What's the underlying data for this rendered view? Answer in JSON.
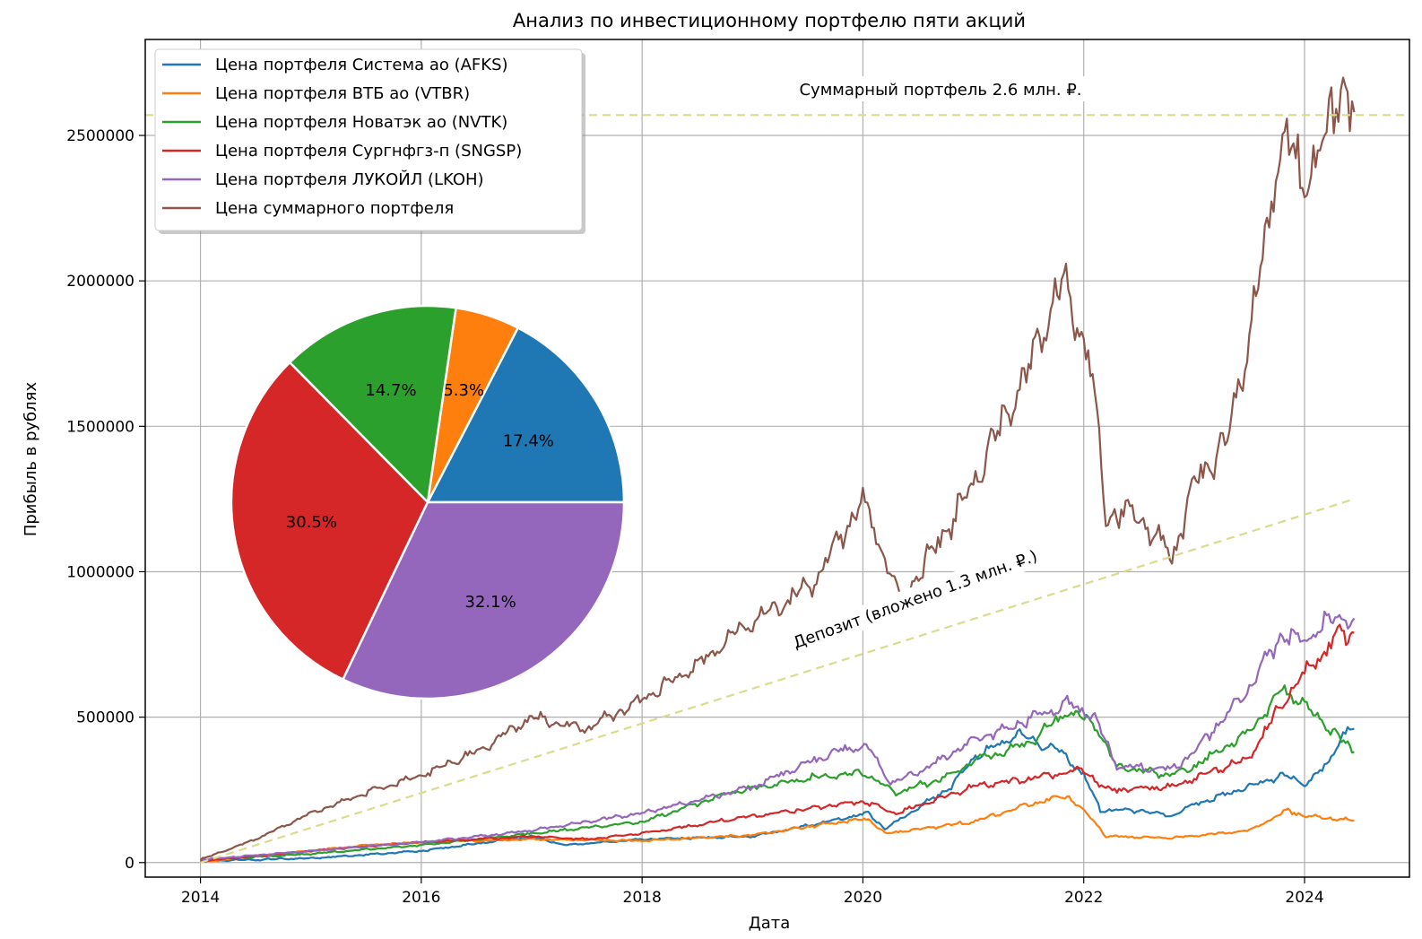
{
  "chart_data": {
    "type": "line",
    "title": "Анализ по инвестиционному портфелю пяти акций",
    "xlabel": "Дата",
    "ylabel": "Прибыль в рублях",
    "x_ticks": [
      "2014",
      "2016",
      "2018",
      "2020",
      "2022",
      "2024"
    ],
    "y_ticks": [
      "0",
      "500000",
      "1000000",
      "1500000",
      "2000000",
      "2500000"
    ],
    "xlim": [
      2013.5,
      2024.95
    ],
    "ylim": [
      -50000,
      2830000
    ],
    "grid": true,
    "legend_position": "top-left",
    "series": [
      {
        "name": "Цена портфеля Система ао (AFKS)",
        "color": "#1f77b4",
        "points": [
          [
            2014.0,
            5000
          ],
          [
            2015.0,
            15000
          ],
          [
            2016.0,
            40000
          ],
          [
            2017.0,
            90000
          ],
          [
            2017.3,
            60000
          ],
          [
            2018.0,
            80000
          ],
          [
            2019.0,
            90000
          ],
          [
            2019.8,
            150000
          ],
          [
            2020.05,
            170000
          ],
          [
            2020.2,
            115000
          ],
          [
            2020.8,
            260000
          ],
          [
            2021.0,
            360000
          ],
          [
            2021.4,
            440000
          ],
          [
            2021.8,
            380000
          ],
          [
            2022.0,
            300000
          ],
          [
            2022.15,
            180000
          ],
          [
            2022.5,
            180000
          ],
          [
            2022.8,
            160000
          ],
          [
            2023.0,
            200000
          ],
          [
            2023.5,
            260000
          ],
          [
            2023.8,
            300000
          ],
          [
            2024.0,
            270000
          ],
          [
            2024.2,
            330000
          ],
          [
            2024.35,
            450000
          ],
          [
            2024.45,
            460000
          ]
        ]
      },
      {
        "name": "Цена портфеля ВТБ ао (VTBR)",
        "color": "#ff7f0e",
        "points": [
          [
            2014.0,
            3000
          ],
          [
            2015.0,
            40000
          ],
          [
            2015.5,
            60000
          ],
          [
            2016.0,
            70000
          ],
          [
            2017.0,
            80000
          ],
          [
            2018.0,
            75000
          ],
          [
            2019.0,
            95000
          ],
          [
            2019.8,
            140000
          ],
          [
            2020.05,
            150000
          ],
          [
            2020.2,
            100000
          ],
          [
            2021.0,
            140000
          ],
          [
            2021.5,
            200000
          ],
          [
            2021.85,
            230000
          ],
          [
            2022.1,
            140000
          ],
          [
            2022.2,
            90000
          ],
          [
            2022.8,
            85000
          ],
          [
            2023.5,
            110000
          ],
          [
            2023.85,
            180000
          ],
          [
            2024.0,
            160000
          ],
          [
            2024.45,
            145000
          ]
        ]
      },
      {
        "name": "Цена портфеля Новатэк ао (NVTK)",
        "color": "#2ca02c",
        "points": [
          [
            2014.0,
            8000
          ],
          [
            2015.0,
            30000
          ],
          [
            2016.0,
            60000
          ],
          [
            2017.0,
            100000
          ],
          [
            2018.0,
            140000
          ],
          [
            2018.8,
            240000
          ],
          [
            2019.5,
            290000
          ],
          [
            2020.0,
            310000
          ],
          [
            2020.3,
            240000
          ],
          [
            2020.8,
            300000
          ],
          [
            2021.0,
            350000
          ],
          [
            2021.5,
            410000
          ],
          [
            2021.85,
            520000
          ],
          [
            2022.1,
            480000
          ],
          [
            2022.3,
            330000
          ],
          [
            2022.8,
            300000
          ],
          [
            2023.0,
            330000
          ],
          [
            2023.5,
            450000
          ],
          [
            2023.8,
            600000
          ],
          [
            2024.0,
            540000
          ],
          [
            2024.45,
            380000
          ]
        ]
      },
      {
        "name": "Цена портфеля Сургнфгз-п (SNGSP)",
        "color": "#d62728",
        "points": [
          [
            2014.0,
            5000
          ],
          [
            2015.0,
            40000
          ],
          [
            2016.0,
            70000
          ],
          [
            2017.0,
            90000
          ],
          [
            2017.5,
            80000
          ],
          [
            2018.0,
            100000
          ],
          [
            2019.0,
            160000
          ],
          [
            2020.0,
            210000
          ],
          [
            2020.3,
            170000
          ],
          [
            2021.0,
            260000
          ],
          [
            2022.0,
            320000
          ],
          [
            2022.2,
            250000
          ],
          [
            2022.8,
            260000
          ],
          [
            2023.0,
            290000
          ],
          [
            2023.5,
            360000
          ],
          [
            2023.8,
            550000
          ],
          [
            2024.0,
            650000
          ],
          [
            2024.3,
            780000
          ],
          [
            2024.45,
            790000
          ]
        ]
      },
      {
        "name": "Цена портфеля ЛУКОЙЛ (LKOH)",
        "color": "#9467bd",
        "points": [
          [
            2014.0,
            10000
          ],
          [
            2015.0,
            40000
          ],
          [
            2016.0,
            70000
          ],
          [
            2017.0,
            110000
          ],
          [
            2018.0,
            170000
          ],
          [
            2019.0,
            260000
          ],
          [
            2019.8,
            390000
          ],
          [
            2020.05,
            400000
          ],
          [
            2020.25,
            270000
          ],
          [
            2020.6,
            330000
          ],
          [
            2021.0,
            420000
          ],
          [
            2021.5,
            490000
          ],
          [
            2021.85,
            550000
          ],
          [
            2022.1,
            500000
          ],
          [
            2022.3,
            330000
          ],
          [
            2022.8,
            320000
          ],
          [
            2023.0,
            380000
          ],
          [
            2023.5,
            600000
          ],
          [
            2023.8,
            790000
          ],
          [
            2024.0,
            760000
          ],
          [
            2024.2,
            830000
          ],
          [
            2024.45,
            840000
          ]
        ]
      },
      {
        "name": "Цена суммарного портфеля",
        "color": "#8c564b",
        "points": [
          [
            2014.0,
            10000
          ],
          [
            2014.5,
            80000
          ],
          [
            2015.0,
            170000
          ],
          [
            2015.5,
            240000
          ],
          [
            2016.0,
            300000
          ],
          [
            2016.5,
            380000
          ],
          [
            2017.0,
            500000
          ],
          [
            2017.5,
            460000
          ],
          [
            2018.0,
            560000
          ],
          [
            2018.5,
            680000
          ],
          [
            2019.0,
            830000
          ],
          [
            2019.5,
            940000
          ],
          [
            2020.0,
            1240000
          ],
          [
            2020.2,
            1050000
          ],
          [
            2020.35,
            900000
          ],
          [
            2020.6,
            1050000
          ],
          [
            2021.0,
            1300000
          ],
          [
            2021.5,
            1700000
          ],
          [
            2021.8,
            2000000
          ],
          [
            2022.0,
            1800000
          ],
          [
            2022.1,
            1600000
          ],
          [
            2022.2,
            1200000
          ],
          [
            2022.5,
            1200000
          ],
          [
            2022.8,
            1050000
          ],
          [
            2023.0,
            1300000
          ],
          [
            2023.3,
            1450000
          ],
          [
            2023.5,
            1800000
          ],
          [
            2023.8,
            2500000
          ],
          [
            2024.0,
            2350000
          ],
          [
            2024.2,
            2500000
          ],
          [
            2024.35,
            2700000
          ],
          [
            2024.45,
            2580000
          ]
        ]
      },
      {
        "name": "Депозит",
        "color": "#dbdb8d",
        "dashed": true,
        "points": [
          [
            2014.0,
            0
          ],
          [
            2024.45,
            1250000
          ]
        ]
      },
      {
        "name": "Суммарный портфель",
        "color": "#dbdb8d",
        "dashed": true,
        "points": [
          [
            2013.5,
            2570000
          ],
          [
            2024.95,
            2570000
          ]
        ]
      }
    ],
    "annotations": {
      "total": "Суммарный портфель 2.6 млн. ₽.",
      "deposit": "Депозит (вложено 1.3 млн. ₽.)"
    },
    "pie": {
      "labels": [
        "17.4%",
        "5.3%",
        "14.7%",
        "30.5%",
        "32.1%"
      ],
      "values": [
        17.4,
        5.3,
        14.7,
        30.5,
        32.1
      ],
      "colors": [
        "#1f77b4",
        "#ff7f0e",
        "#2ca02c",
        "#d62728",
        "#9467bd"
      ]
    }
  }
}
